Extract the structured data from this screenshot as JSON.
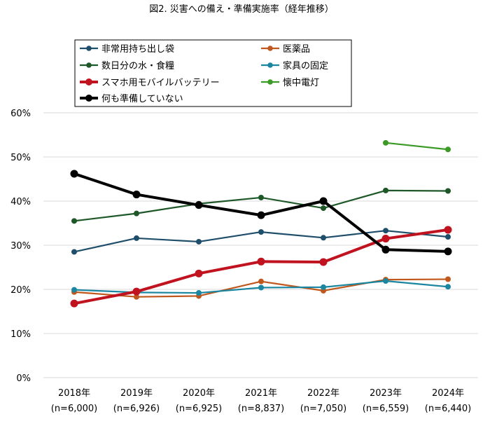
{
  "chart_data": {
    "type": "line",
    "title": "図2. 災害への備え・準備実施率（経年推移）",
    "xlabel": "",
    "ylabel": "",
    "ylim": [
      0,
      60
    ],
    "yticks": [
      0,
      10,
      20,
      30,
      40,
      50,
      60
    ],
    "ytick_labels": [
      "0%",
      "10%",
      "20%",
      "30%",
      "40%",
      "50%",
      "60%"
    ],
    "grid": true,
    "legend_position": "top",
    "categories": [
      {
        "year": "2018年",
        "n": "(n=6,000)"
      },
      {
        "year": "2019年",
        "n": "(n=6,926)"
      },
      {
        "year": "2020年",
        "n": "(n=6,925)"
      },
      {
        "year": "2021年",
        "n": "(n=8,837)"
      },
      {
        "year": "2022年",
        "n": "(n=7,050)"
      },
      {
        "year": "2023年",
        "n": "(n=6,559)"
      },
      {
        "year": "2024年",
        "n": "(n=6,440)"
      }
    ],
    "series": [
      {
        "name": "非常用持ち出し袋",
        "color": "#1f4e6b",
        "weight": "normal",
        "values": [
          28.5,
          31.6,
          30.8,
          33.0,
          31.7,
          33.3,
          31.9
        ]
      },
      {
        "name": "医薬品",
        "color": "#c0581e",
        "weight": "normal",
        "values": [
          19.4,
          18.3,
          18.5,
          21.8,
          19.7,
          22.2,
          22.3
        ]
      },
      {
        "name": "数日分の水・食糧",
        "color": "#1e5828",
        "weight": "normal",
        "values": [
          35.5,
          37.2,
          39.4,
          40.8,
          38.4,
          42.4,
          42.3
        ]
      },
      {
        "name": "家具の固定",
        "color": "#1b86a0",
        "weight": "normal",
        "values": [
          19.9,
          19.3,
          19.2,
          20.4,
          20.5,
          21.9,
          20.6
        ]
      },
      {
        "name": "スマホ用モバイルバッテリー",
        "color": "#c0121f",
        "weight": "bold",
        "values": [
          16.8,
          19.5,
          23.6,
          26.3,
          26.2,
          31.5,
          33.5
        ]
      },
      {
        "name": "懐中電灯",
        "color": "#3c9a26",
        "weight": "normal",
        "values": [
          null,
          null,
          null,
          null,
          null,
          53.2,
          51.7
        ]
      },
      {
        "name": "何も準備していない",
        "color": "#000000",
        "weight": "bold",
        "values": [
          46.2,
          41.5,
          39.1,
          36.8,
          40.0,
          29.0,
          28.6
        ]
      }
    ]
  }
}
